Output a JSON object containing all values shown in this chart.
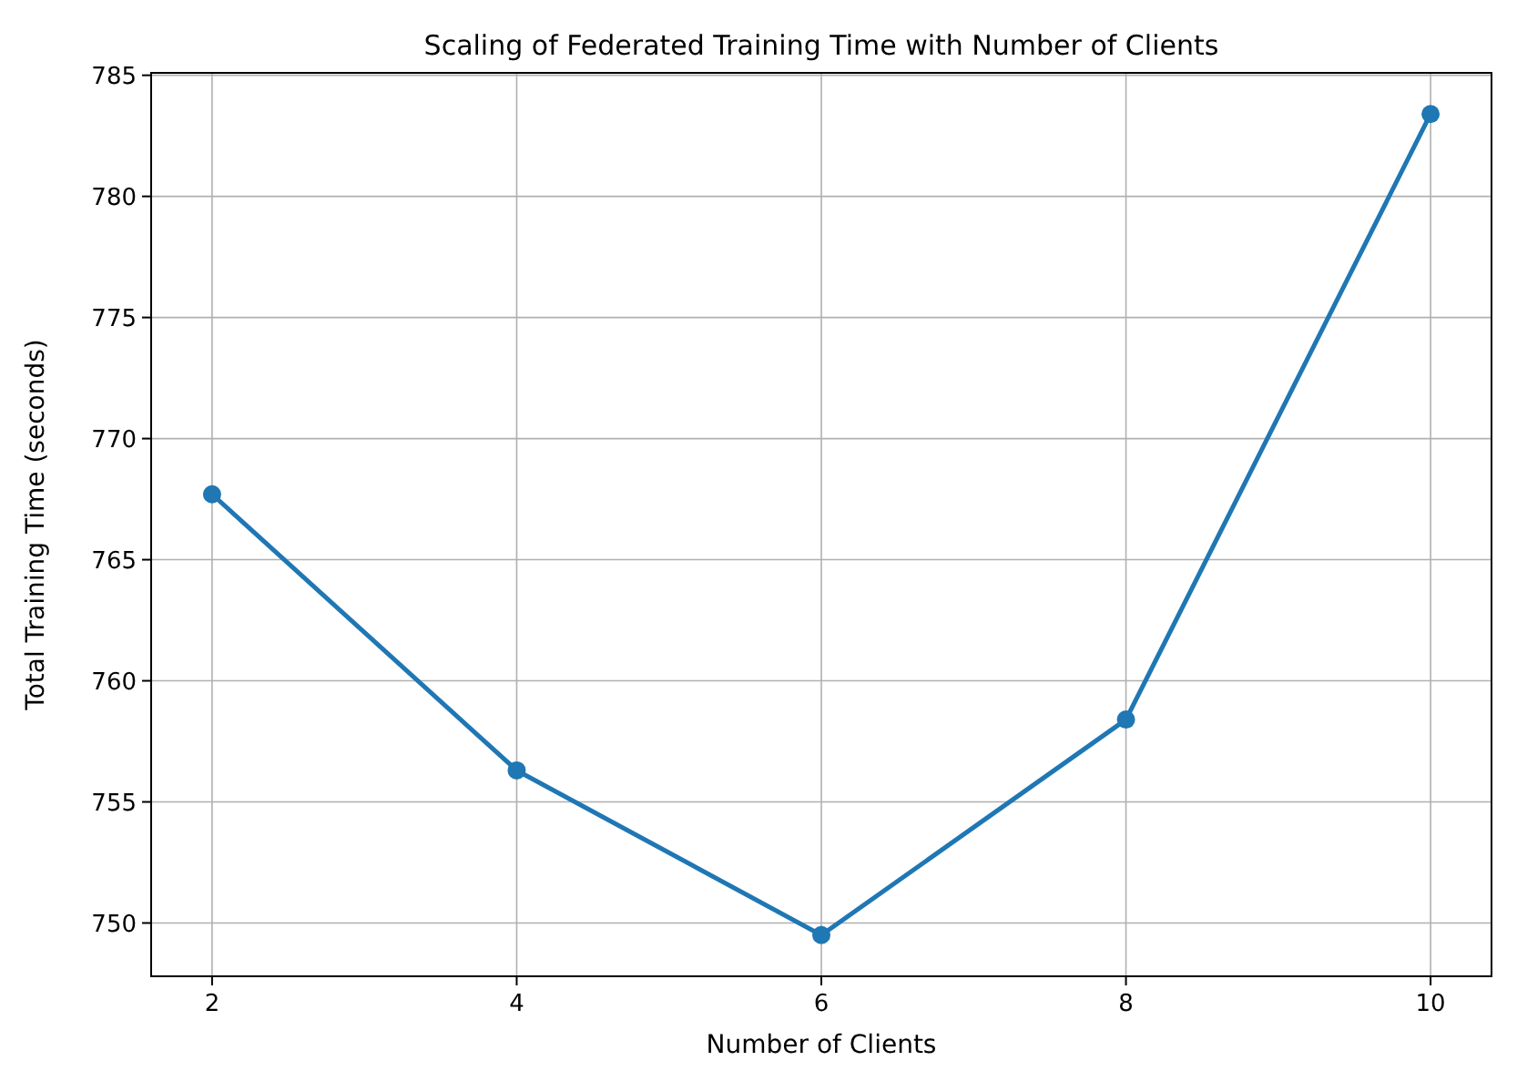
{
  "chart_data": {
    "type": "line",
    "title": "Scaling of Federated Training Time with Number of Clients",
    "xlabel": "Number of Clients",
    "ylabel": "Total Training Time (seconds)",
    "x": [
      2,
      4,
      6,
      8,
      10
    ],
    "series": [
      {
        "color": "#1f77b4",
        "values": [
          767.7,
          756.3,
          749.5,
          758.4,
          783.4
        ]
      }
    ],
    "xlim": [
      1.6,
      10.4
    ],
    "xticks": [
      2,
      4,
      6,
      8,
      10
    ],
    "ylim": [
      747.8,
      785.1
    ],
    "yticks": [
      750,
      755,
      760,
      765,
      770,
      775,
      780,
      785
    ],
    "grid": true,
    "marker": "circle",
    "line_style": "solid"
  }
}
